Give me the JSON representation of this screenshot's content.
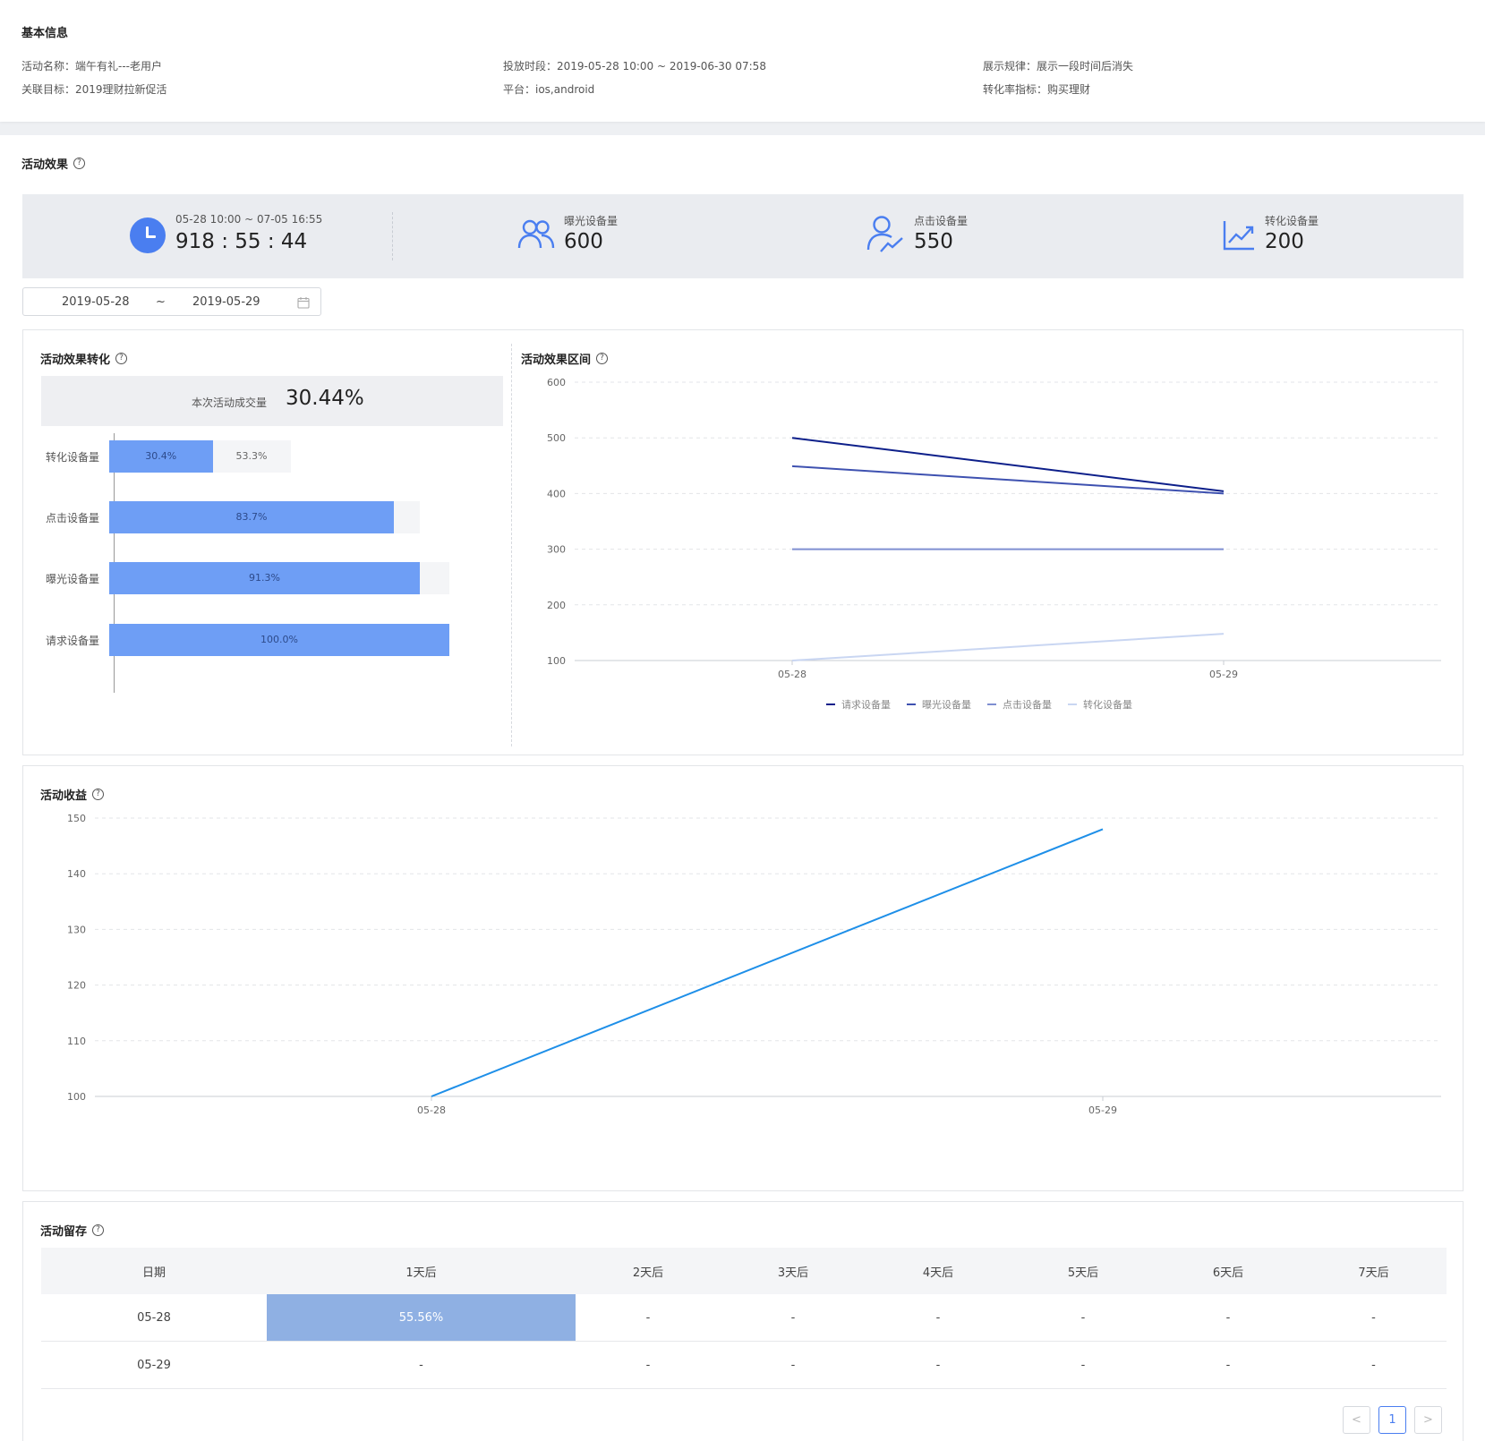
{
  "basic": {
    "title": "基本信息",
    "name": "活动名称：端午有礼---老用户",
    "target": "关联目标：2019理财拉新促活",
    "period": "投放时段：2019-05-28 10:00 ~ 2019-06-30 07:58",
    "platform": "平台：ios,android",
    "rule": "展示规律：展示一段时间后消失",
    "metric": "转化率指标：购买理财"
  },
  "effect": {
    "title": "活动效果",
    "help": "?",
    "time_range": "05-28 10:00 ~ 07-05 16:55",
    "countdown": "918 : 55 : 44",
    "stats": [
      {
        "label": "曝光设备量",
        "value": "600",
        "icon": "users-icon"
      },
      {
        "label": "点击设备量",
        "value": "550",
        "icon": "user-click-icon"
      },
      {
        "label": "转化设备量",
        "value": "200",
        "icon": "trend-chart-icon"
      }
    ],
    "date_start": "2019-05-28",
    "date_sep": "~",
    "date_end": "2019-05-29"
  },
  "conversion": {
    "title": "活动效果转化",
    "success_label": "本次活动成交量",
    "success_value": "30.44%",
    "funnel": [
      {
        "label": "转化设备量",
        "fill": 30.4,
        "rest": 53.3,
        "fill_text": "30.4%",
        "rest_text": "53.3%"
      },
      {
        "label": "点击设备量",
        "fill": 83.7,
        "rest": 91.3,
        "fill_text": "83.7%",
        "rest_text": ""
      },
      {
        "label": "曝光设备量",
        "fill": 91.3,
        "rest": 100,
        "fill_text": "91.3%",
        "rest_text": ""
      },
      {
        "label": "请求设备量",
        "fill": 100,
        "rest": 100,
        "fill_text": "100.0%",
        "rest_text": ""
      }
    ]
  },
  "chart_data": [
    {
      "type": "line",
      "title": "活动效果区间",
      "x": [
        "05-28",
        "05-29"
      ],
      "yticks": [
        "100",
        "200",
        "300",
        "400",
        "500",
        "600"
      ],
      "ylim": [
        100,
        600
      ],
      "grid": true,
      "legend": "bottom",
      "series": [
        {
          "name": "请求设备量",
          "values": [
            500,
            404
          ],
          "color": "#0d1f8a"
        },
        {
          "name": "曝光设备量",
          "values": [
            449,
            400
          ],
          "color": "#3e51b0"
        },
        {
          "name": "点击设备量",
          "values": [
            300,
            300
          ],
          "color": "#7f8fd1"
        },
        {
          "name": "转化设备量",
          "values": [
            100,
            148
          ],
          "color": "#c9d6f2"
        }
      ]
    },
    {
      "type": "line",
      "title": "活动收益",
      "x": [
        "05-28",
        "05-29"
      ],
      "yticks": [
        "100",
        "110",
        "120",
        "130",
        "140",
        "150"
      ],
      "ylim": [
        100,
        150
      ],
      "grid": true,
      "series": [
        {
          "values": [
            100,
            148
          ],
          "color": "#1e8fe8"
        }
      ]
    }
  ],
  "retention": {
    "title": "活动留存",
    "headers": [
      "日期",
      "1天后",
      "2天后",
      "3天后",
      "4天后",
      "5天后",
      "6天后",
      "7天后"
    ],
    "rows": [
      [
        "05-28",
        "55.56%",
        "-",
        "-",
        "-",
        "-",
        "-",
        "-"
      ],
      [
        "05-29",
        "-",
        "-",
        "-",
        "-",
        "-",
        "-",
        "-"
      ]
    ],
    "pager": {
      "prev": "<",
      "current": "1",
      "next": ">"
    }
  }
}
